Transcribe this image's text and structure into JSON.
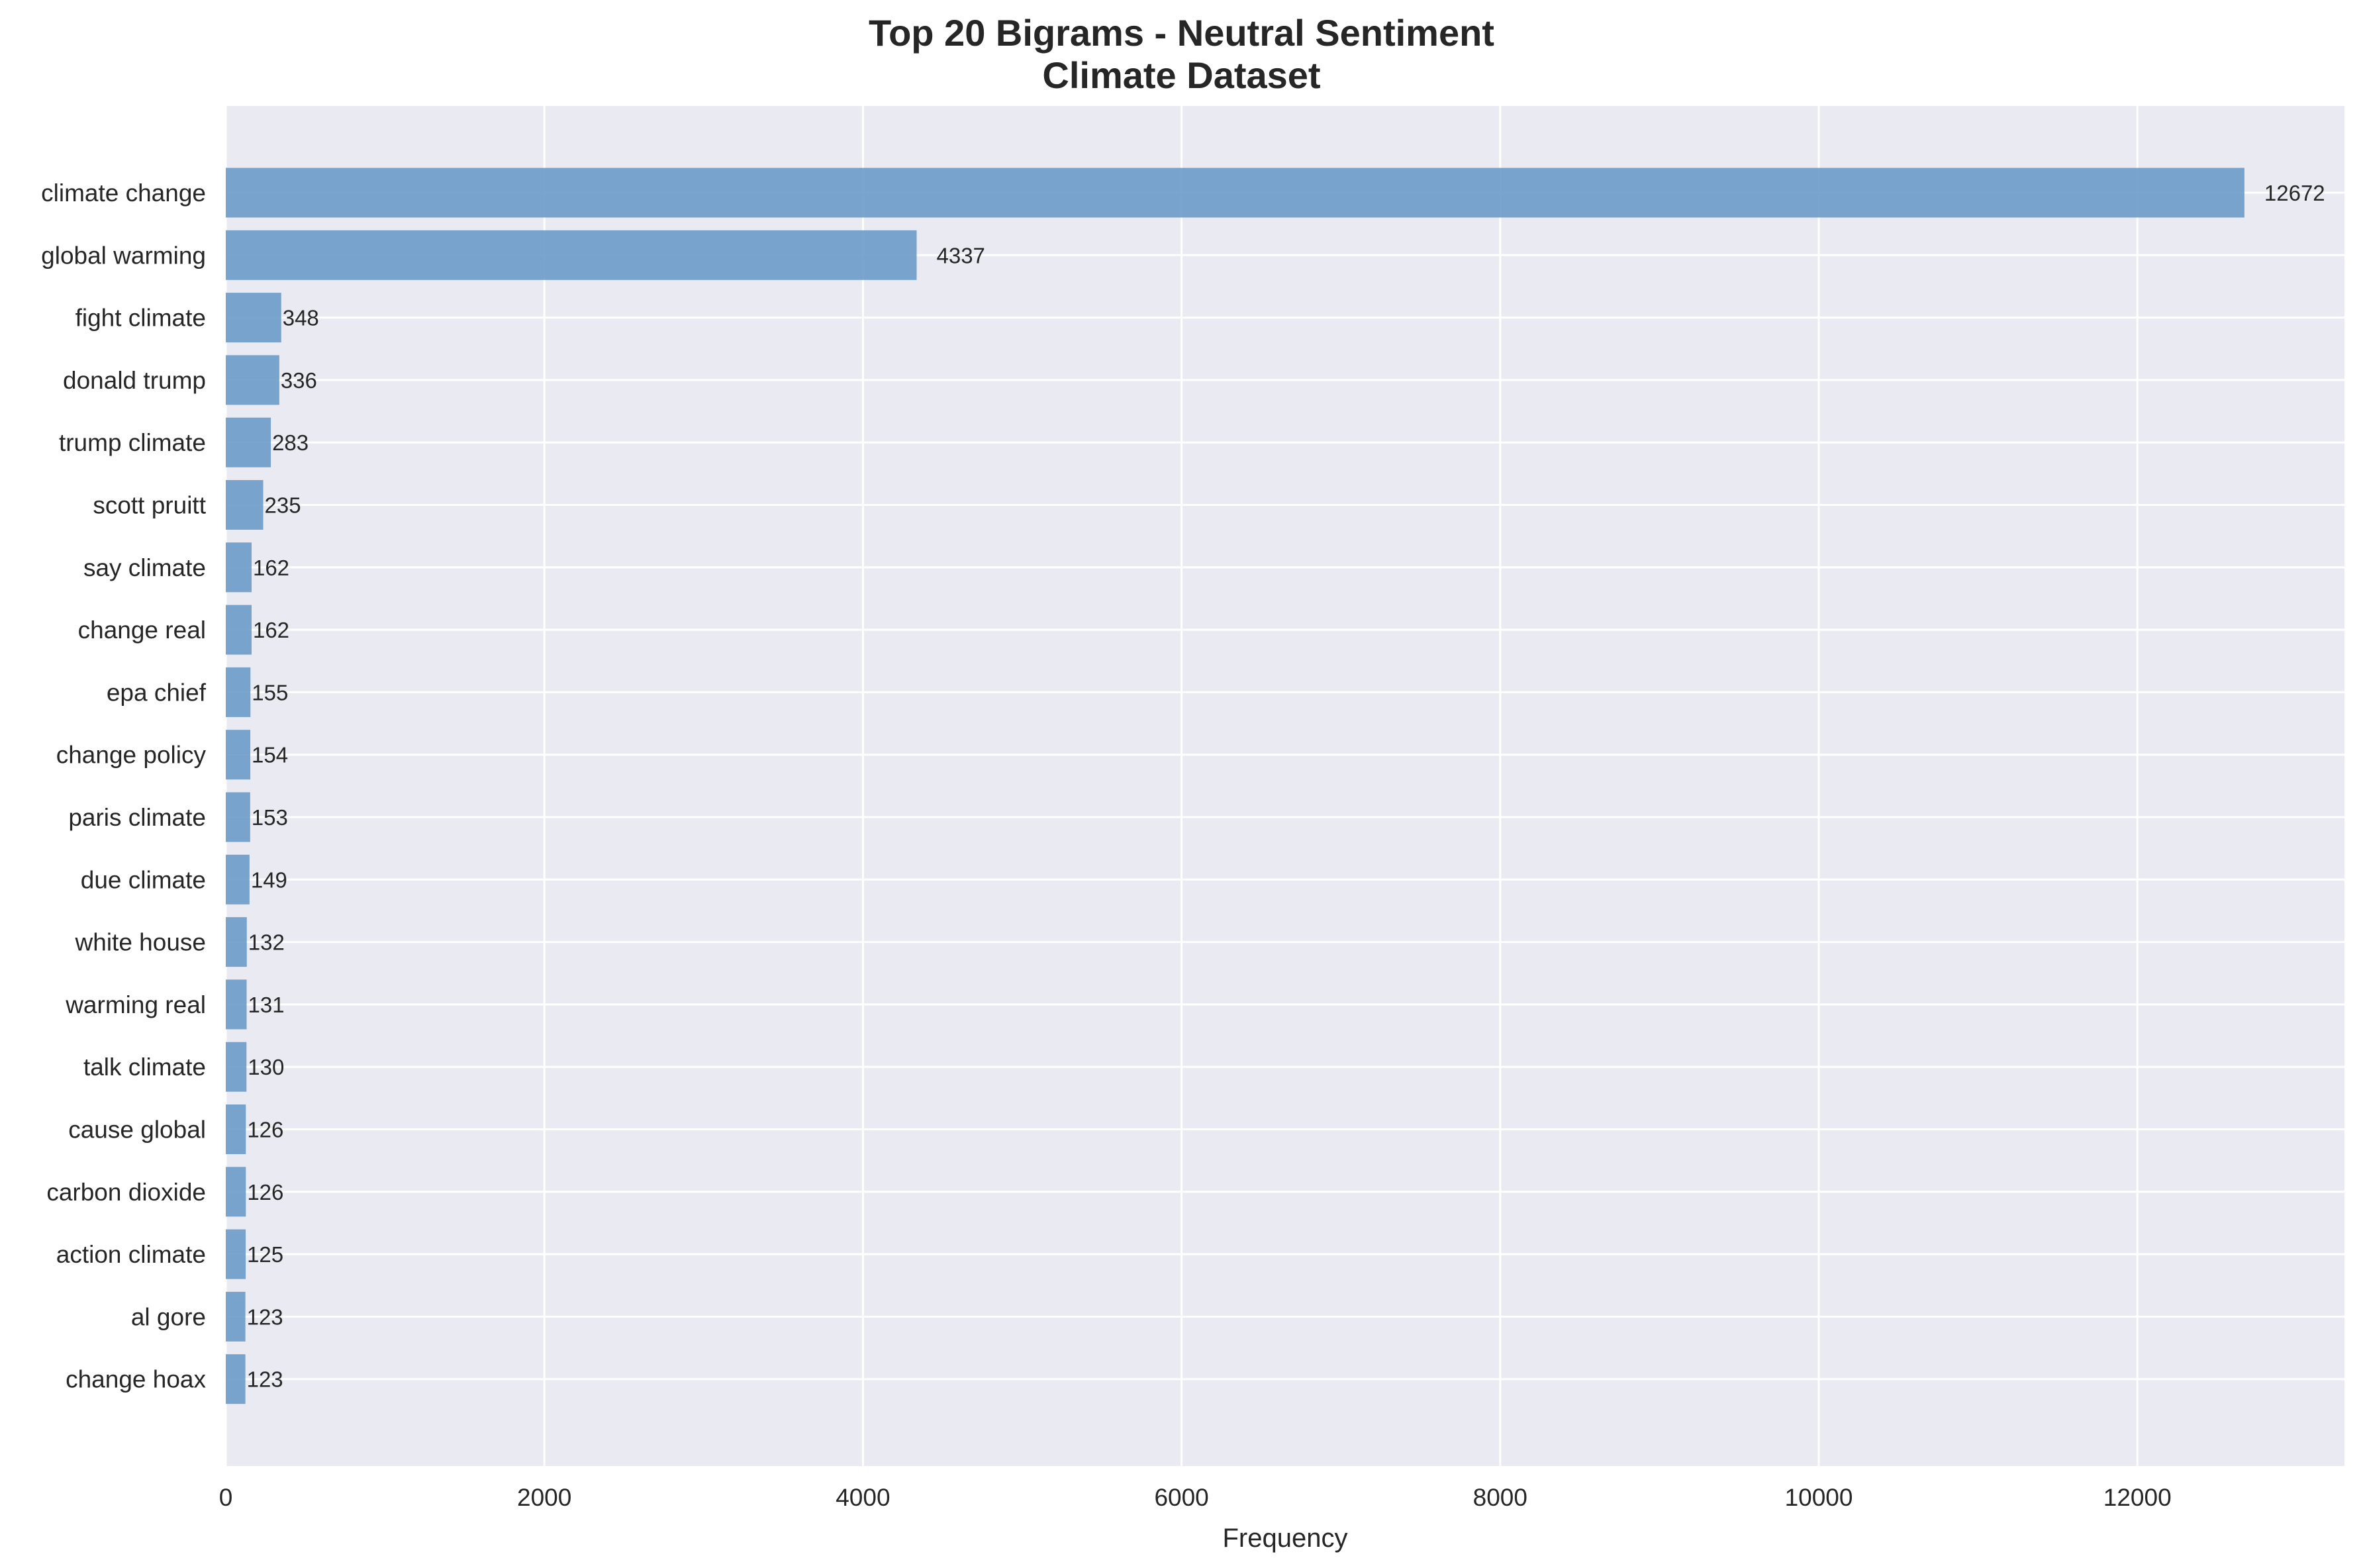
{
  "chart_data": {
    "type": "bar",
    "orientation": "horizontal",
    "title": "Top 20 Bigrams - Neutral Sentiment",
    "subtitle": "Climate Dataset",
    "xlabel": "Frequency",
    "ylabel": "",
    "xlim": [
      0,
      13300
    ],
    "xticks": [
      0,
      2000,
      4000,
      6000,
      8000,
      10000,
      12000
    ],
    "grid": true,
    "categories": [
      "climate change",
      "global warming",
      "fight climate",
      "donald trump",
      "trump climate",
      "scott pruitt",
      "say climate",
      "change real",
      "epa chief",
      "change policy",
      "paris climate",
      "due climate",
      "white house",
      "warming real",
      "talk climate",
      "cause global",
      "carbon dioxide",
      "action climate",
      "al gore",
      "change hoax"
    ],
    "values": [
      12672,
      4337,
      348,
      336,
      283,
      235,
      162,
      162,
      155,
      154,
      153,
      149,
      132,
      131,
      130,
      126,
      126,
      125,
      123,
      123
    ],
    "colors": {
      "bar": "#6b9bc8",
      "background": "#eaeaf2",
      "grid": "#ffffff",
      "text": "#262626"
    }
  }
}
